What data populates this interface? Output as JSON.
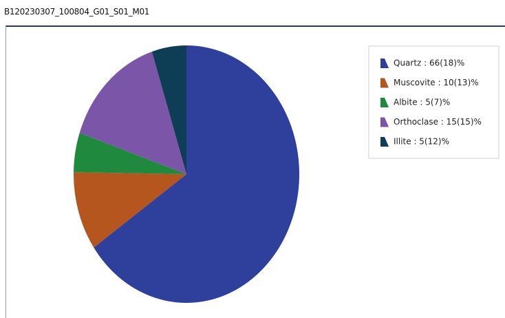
{
  "chart_data": {
    "type": "pie",
    "title": "B120230307_100804_G01_S01_M01",
    "labels": [
      "Quartz : 66(18)%",
      "Muscovite : 10(13)%",
      "Albite : 5(7)%",
      "Orthoclase : 15(15)%",
      "Illite : 5(12)%"
    ],
    "values": [
      66,
      10,
      5,
      15,
      5
    ],
    "colors": [
      "#2f3f9c",
      "#b5561f",
      "#1f8a3d",
      "#7a55a8",
      "#0e3d56"
    ],
    "legend": "top-right"
  }
}
